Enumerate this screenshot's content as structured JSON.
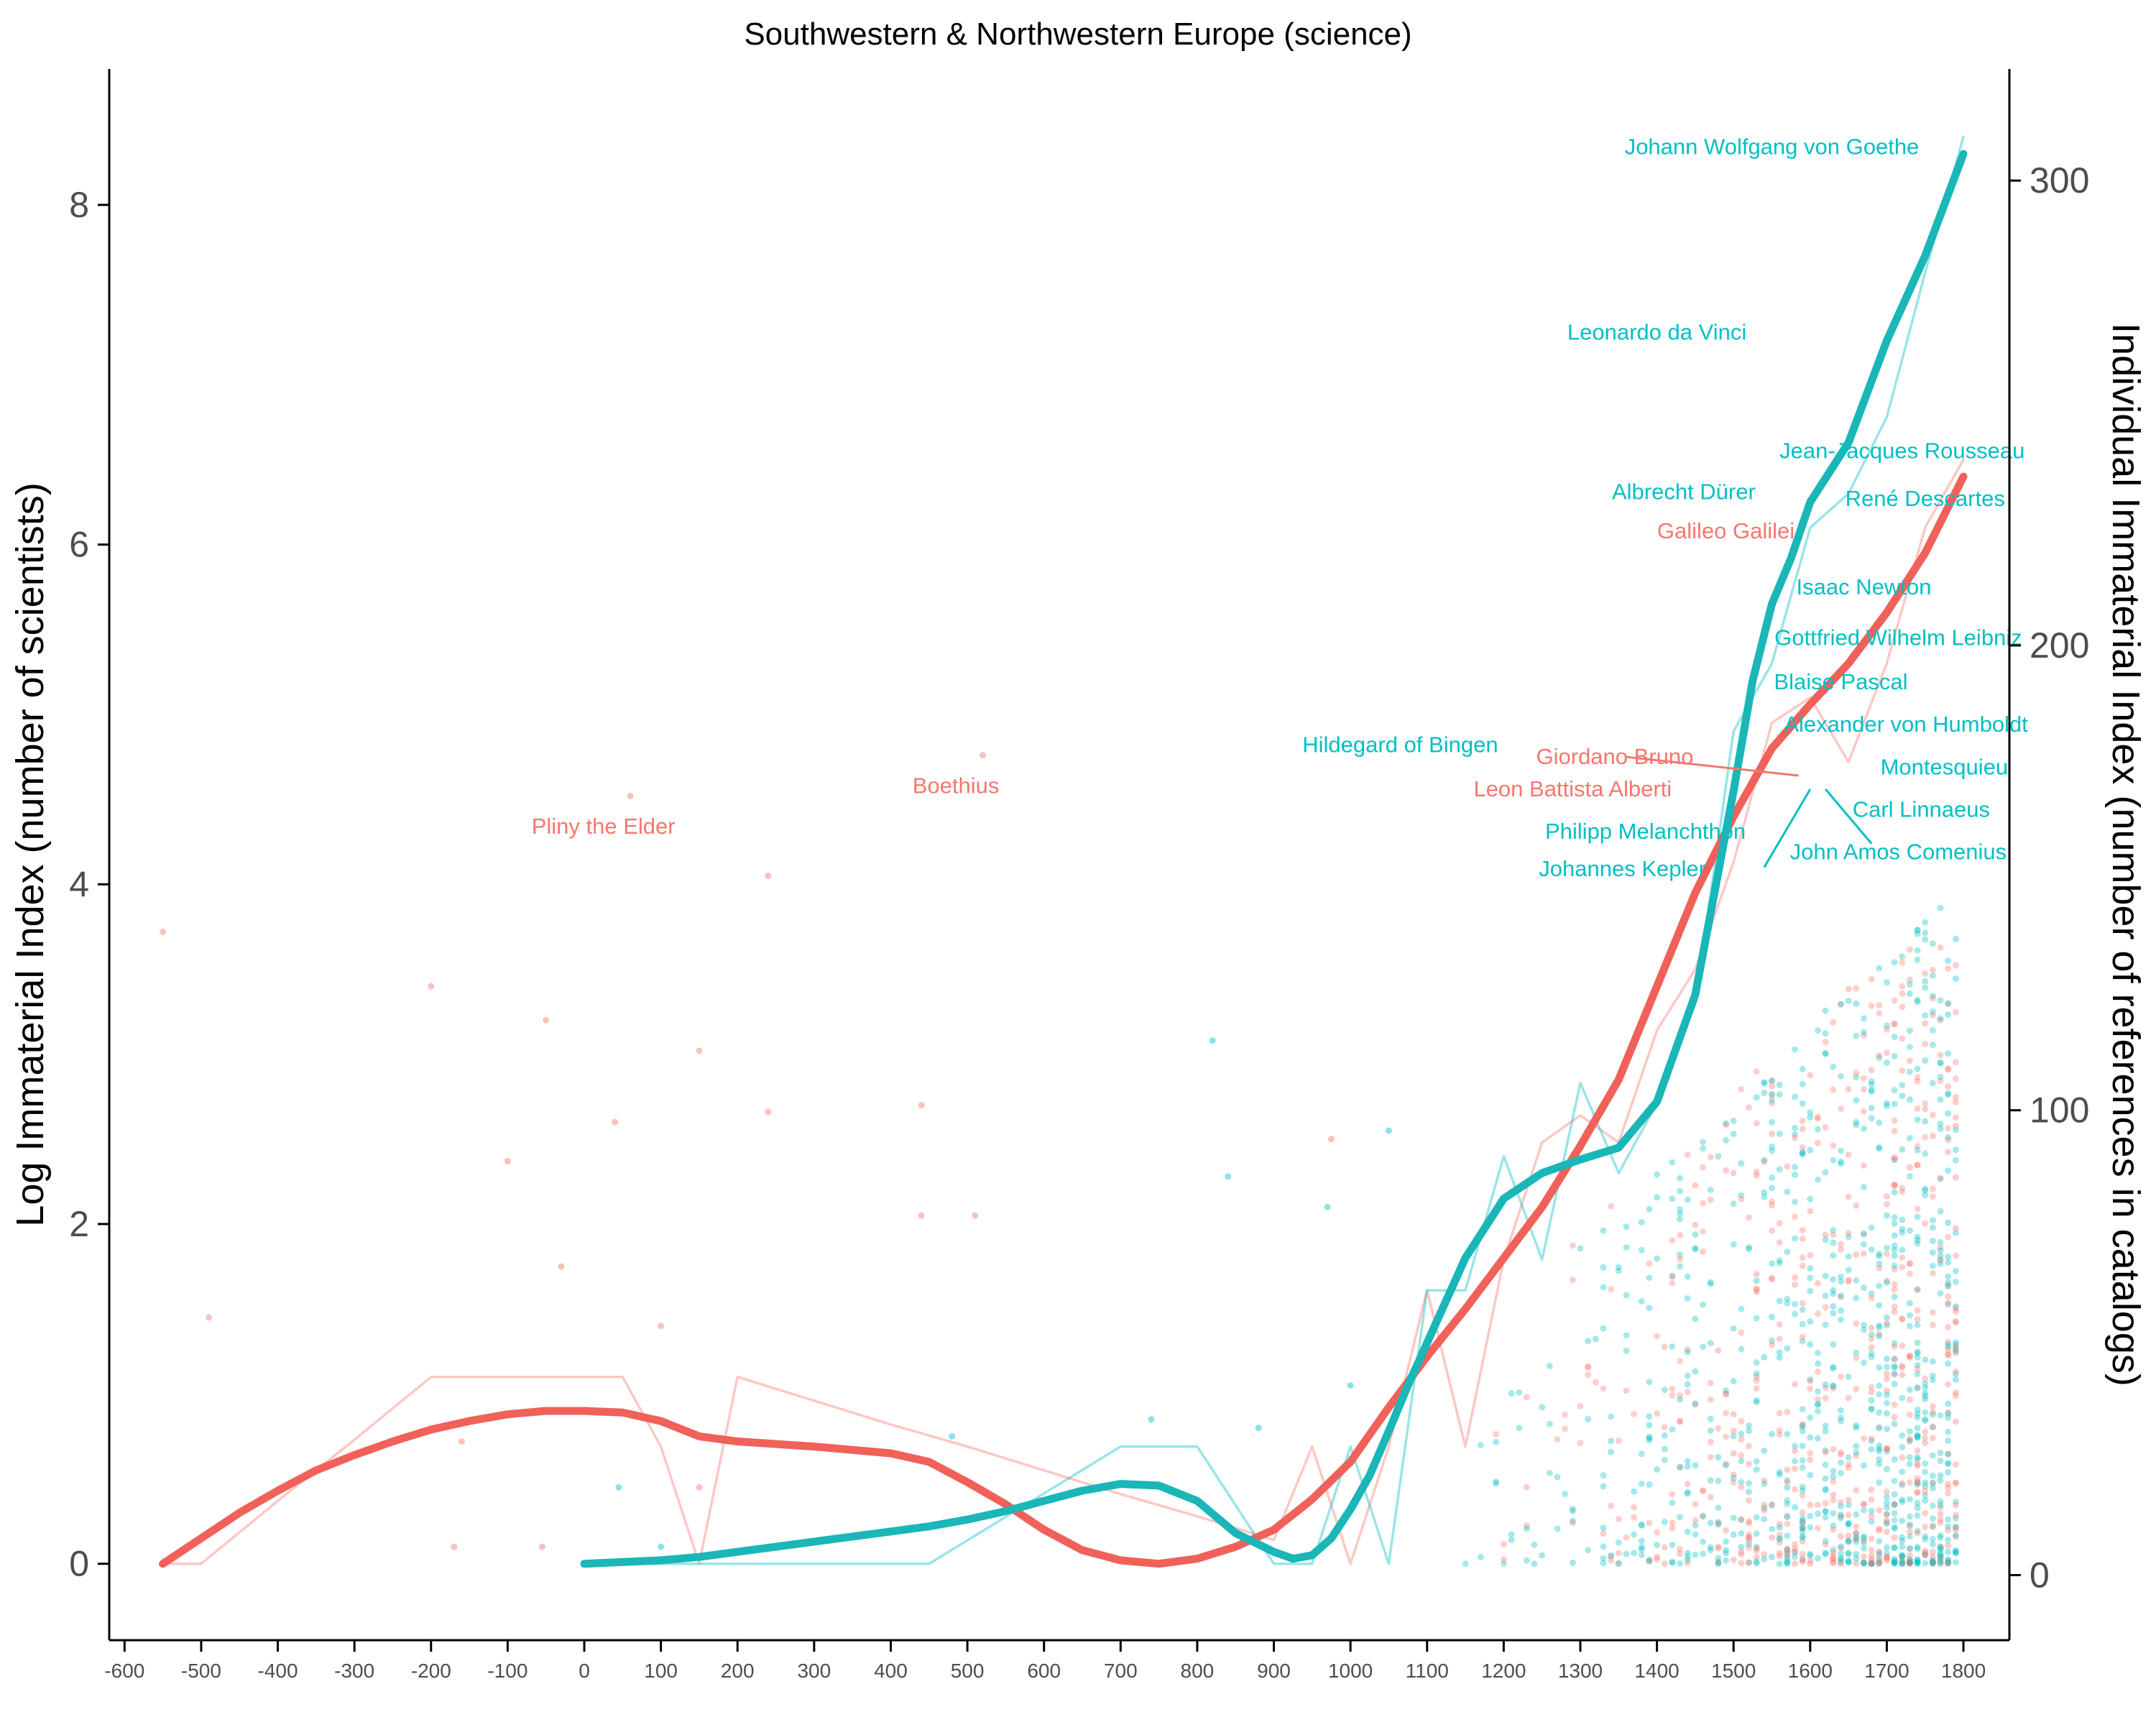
{
  "chart_data": {
    "type": "line",
    "title": "Southwestern & Northwestern Europe (science)",
    "ylabel": "Log Immaterial Index (number of scientists)",
    "y2label": "Individual Immaterial Index (number of references in catalogs)",
    "xlim": [
      -620,
      1860
    ],
    "ylim": [
      -0.45,
      8.8
    ],
    "y2lim": [
      -14,
      324
    ],
    "xticks": [
      -600,
      -500,
      -400,
      -300,
      -200,
      -100,
      0,
      100,
      200,
      300,
      400,
      500,
      600,
      700,
      800,
      900,
      1000,
      1100,
      1200,
      1300,
      1400,
      1500,
      1600,
      1700,
      1800
    ],
    "yticks": [
      0,
      2,
      4,
      6,
      8
    ],
    "y2ticks": [
      0,
      100,
      200,
      300
    ],
    "colors": {
      "red": "#F8766D",
      "teal": "#00BFC4",
      "red_thick": "#F0615A",
      "teal_thick": "#1AB6B8"
    },
    "series": [
      {
        "color": "red",
        "style": "thin",
        "x": [
          -550,
          -500,
          -400,
          -300,
          -200,
          -100,
          0,
          50,
          100,
          150,
          200,
          300,
          400,
          500,
          600,
          700,
          800,
          900,
          950,
          1000,
          1050,
          1100,
          1150,
          1200,
          1250,
          1300,
          1350,
          1400,
          1450,
          1500,
          1550,
          1600,
          1650,
          1700,
          1750,
          1800
        ],
        "y": [
          0,
          0,
          0.37,
          0.73,
          1.1,
          1.1,
          1.1,
          1.1,
          0.69,
          0,
          1.1,
          0.96,
          0.82,
          0.69,
          0.55,
          0.41,
          0.28,
          0.14,
          0.69,
          0,
          0.69,
          1.61,
          0.69,
          1.79,
          2.48,
          2.64,
          2.48,
          3.14,
          3.5,
          4.13,
          4.95,
          5.1,
          4.72,
          5.3,
          6.1,
          6.5
        ]
      },
      {
        "color": "teal",
        "style": "thin",
        "x": [
          0,
          150,
          450,
          700,
          800,
          900,
          950,
          1000,
          1050,
          1100,
          1150,
          1200,
          1250,
          1300,
          1350,
          1400,
          1450,
          1500,
          1550,
          1600,
          1650,
          1700,
          1750,
          1800
        ],
        "y": [
          0,
          0,
          0,
          0.69,
          0.69,
          0,
          0,
          0.69,
          0,
          1.61,
          1.61,
          2.4,
          1.79,
          2.83,
          2.3,
          2.71,
          3.3,
          4.9,
          5.3,
          6.1,
          6.3,
          6.75,
          7.6,
          8.4
        ]
      },
      {
        "color": "red_thick",
        "style": "smooth",
        "x": [
          -550,
          -500,
          -450,
          -400,
          -350,
          -300,
          -250,
          -200,
          -150,
          -100,
          -50,
          0,
          50,
          100,
          150,
          200,
          300,
          400,
          450,
          500,
          550,
          600,
          650,
          700,
          750,
          800,
          850,
          900,
          950,
          1000,
          1050,
          1100,
          1150,
          1200,
          1250,
          1300,
          1350,
          1400,
          1450,
          1500,
          1550,
          1600,
          1650,
          1700,
          1750,
          1800
        ],
        "y": [
          0,
          0.15,
          0.3,
          0.43,
          0.55,
          0.64,
          0.72,
          0.79,
          0.84,
          0.88,
          0.9,
          0.9,
          0.89,
          0.84,
          0.75,
          0.72,
          0.69,
          0.65,
          0.6,
          0.48,
          0.35,
          0.2,
          0.08,
          0.02,
          0,
          0.03,
          0.1,
          0.2,
          0.38,
          0.6,
          0.92,
          1.22,
          1.5,
          1.8,
          2.1,
          2.46,
          2.85,
          3.4,
          3.95,
          4.4,
          4.8,
          5.06,
          5.3,
          5.6,
          5.95,
          6.4
        ]
      },
      {
        "color": "teal_thick",
        "style": "smooth",
        "x": [
          0,
          50,
          100,
          150,
          200,
          300,
          400,
          450,
          500,
          550,
          600,
          650,
          700,
          750,
          800,
          850,
          900,
          925,
          950,
          975,
          1000,
          1025,
          1050,
          1075,
          1100,
          1150,
          1200,
          1250,
          1300,
          1350,
          1400,
          1450,
          1500,
          1525,
          1550,
          1575,
          1600,
          1650,
          1700,
          1750,
          1800
        ],
        "y": [
          0,
          0.01,
          0.02,
          0.04,
          0.07,
          0.13,
          0.19,
          0.22,
          0.26,
          0.31,
          0.37,
          0.43,
          0.47,
          0.46,
          0.37,
          0.18,
          0.07,
          0.03,
          0.05,
          0.15,
          0.32,
          0.52,
          0.78,
          1.05,
          1.3,
          1.8,
          2.15,
          2.3,
          2.38,
          2.45,
          2.72,
          3.35,
          4.55,
          5.2,
          5.65,
          5.92,
          6.25,
          6.6,
          7.2,
          7.7,
          8.3
        ]
      }
    ],
    "labels": [
      {
        "text": "Johann Wolfgang von Goethe",
        "x": 1550,
        "y": 8.34,
        "color": "teal"
      },
      {
        "text": "Leonardo da Vinci",
        "x": 1400,
        "y": 7.25,
        "color": "teal"
      },
      {
        "text": "Jean-Jacques Rousseau",
        "x": 1720,
        "y": 6.55,
        "color": "teal"
      },
      {
        "text": "Albrecht Dürer",
        "x": 1435,
        "y": 6.31,
        "color": "teal"
      },
      {
        "text": "René Descartes",
        "x": 1750,
        "y": 6.27,
        "color": "teal"
      },
      {
        "text": "Galileo Galilei",
        "x": 1490,
        "y": 6.08,
        "color": "red"
      },
      {
        "text": "Isaac Newton",
        "x": 1670,
        "y": 5.75,
        "color": "teal"
      },
      {
        "text": "Gottfried Wilhelm Leibniz",
        "x": 1715,
        "y": 5.45,
        "color": "teal"
      },
      {
        "text": "Blaise Pascal",
        "x": 1640,
        "y": 5.19,
        "color": "teal"
      },
      {
        "text": "Alexander von Humboldt",
        "x": 1725,
        "y": 4.94,
        "color": "teal"
      },
      {
        "text": "Hildegard of Bingen",
        "x": 1065,
        "y": 4.82,
        "color": "teal"
      },
      {
        "text": "Giordano Bruno",
        "x": 1345,
        "y": 4.75,
        "color": "red"
      },
      {
        "text": "Montesquieu",
        "x": 1775,
        "y": 4.69,
        "color": "teal"
      },
      {
        "text": "Boethius",
        "x": 485,
        "y": 4.58,
        "color": "red"
      },
      {
        "text": "Leon Battista Alberti",
        "x": 1290,
        "y": 4.56,
        "color": "red"
      },
      {
        "text": "Carl Linnaeus",
        "x": 1745,
        "y": 4.44,
        "color": "teal"
      },
      {
        "text": "Pliny the Elder",
        "x": 25,
        "y": 4.34,
        "color": "red"
      },
      {
        "text": "Philipp Melanchthon",
        "x": 1385,
        "y": 4.31,
        "color": "teal"
      },
      {
        "text": "John Amos Comenius",
        "x": 1715,
        "y": 4.19,
        "color": "teal"
      },
      {
        "text": "Johannes Kepler",
        "x": 1355,
        "y": 4.09,
        "color": "teal"
      }
    ]
  }
}
